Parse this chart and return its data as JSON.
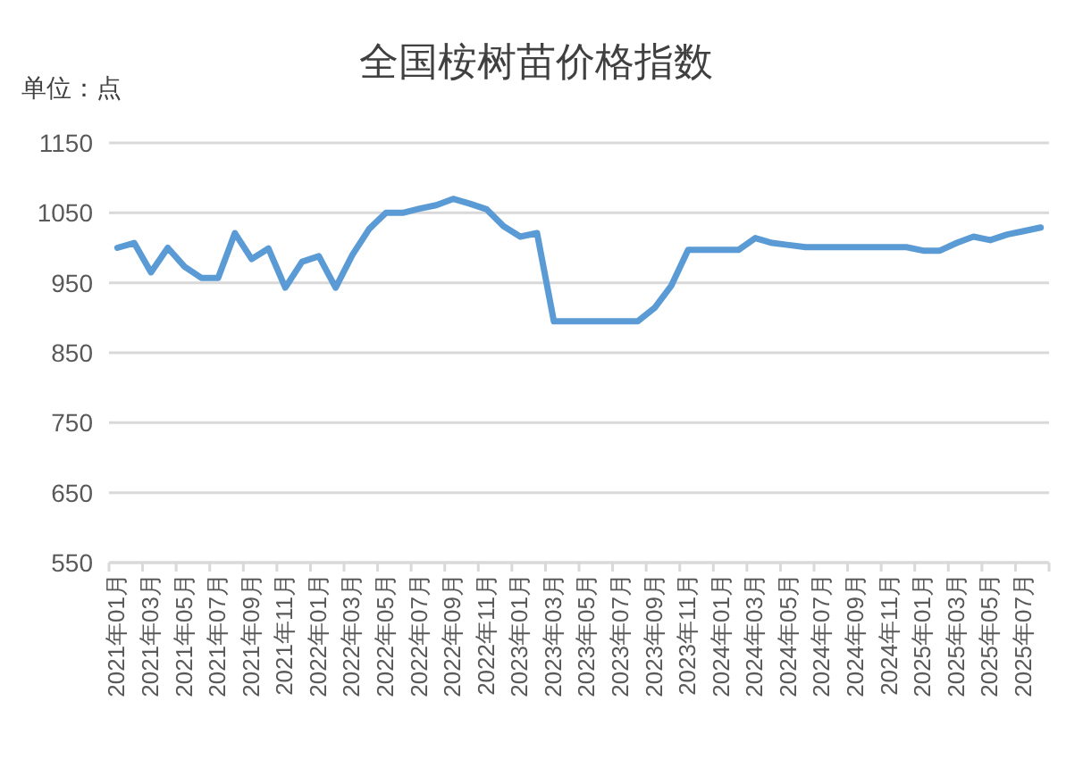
{
  "chart_data": {
    "type": "line",
    "title": "全国桉树苗价格指数",
    "ylabel": "单位：点",
    "categories": [
      "2021年01月",
      null,
      "2021年03月",
      null,
      "2021年05月",
      null,
      "2021年07月",
      null,
      "2021年09月",
      null,
      "2021年11月",
      null,
      "2022年01月",
      null,
      "2022年03月",
      null,
      "2022年05月",
      null,
      "2022年07月",
      null,
      "2022年09月",
      null,
      "2022年11月",
      null,
      "2023年01月",
      null,
      "2023年03月",
      null,
      "2023年05月",
      null,
      "2023年07月",
      null,
      "2023年09月",
      null,
      "2023年11月",
      null,
      "2024年01月",
      null,
      "2024年03月",
      null,
      "2024年05月",
      null,
      "2024年07月",
      null,
      "2024年09月",
      null,
      "2024年11月",
      null,
      "2025年01月",
      null,
      "2025年03月",
      null,
      "2025年05月",
      null,
      "2025年07月",
      null
    ],
    "series": [
      {
        "color": "#5b9bd5",
        "values": [
          1000,
          1007,
          965,
          1000,
          973,
          957,
          957,
          1021,
          984,
          999,
          943,
          980,
          988,
          943,
          990,
          1027,
          1050,
          1050,
          1056,
          1061,
          1070,
          1063,
          1055,
          1031,
          1016,
          1021,
          895,
          895,
          895,
          895,
          895,
          895,
          914,
          946,
          997,
          997,
          997,
          997,
          1014,
          1007,
          1004,
          1001,
          1001,
          1001,
          1001,
          1001,
          1001,
          1001,
          996,
          996,
          1007,
          1016,
          1011,
          1019,
          1024,
          1029
        ]
      }
    ],
    "ylim": [
      550,
      1150
    ],
    "yticks": [
      550,
      650,
      750,
      850,
      950,
      1050,
      1150
    ],
    "grid": "y"
  }
}
